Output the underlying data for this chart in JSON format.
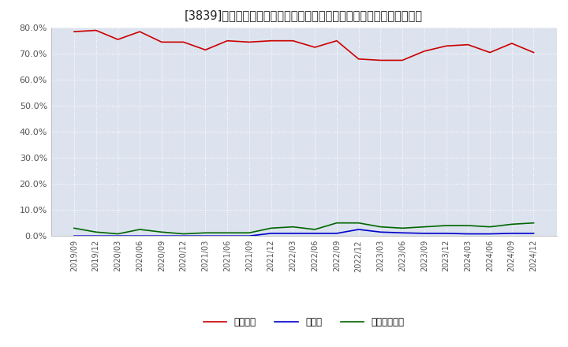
{
  "title": "[3839]　自己資本、のれん、繰延税金資産の総資産に対する比率の推移",
  "x_labels": [
    "2019/09",
    "2019/12",
    "2020/03",
    "2020/06",
    "2020/09",
    "2020/12",
    "2021/03",
    "2021/06",
    "2021/09",
    "2021/12",
    "2022/03",
    "2022/06",
    "2022/09",
    "2022/12",
    "2023/03",
    "2023/06",
    "2023/09",
    "2023/12",
    "2024/03",
    "2024/06",
    "2024/09",
    "2024/12"
  ],
  "jikoshihon": [
    78.5,
    79.0,
    75.5,
    78.5,
    74.5,
    74.5,
    71.5,
    75.0,
    74.5,
    75.0,
    75.0,
    72.5,
    75.0,
    68.0,
    67.5,
    67.5,
    71.0,
    73.0,
    73.5,
    70.5,
    74.0,
    70.5
  ],
  "noren": [
    0.0,
    0.0,
    0.0,
    0.0,
    0.0,
    0.0,
    0.0,
    0.0,
    0.0,
    1.0,
    1.0,
    1.0,
    1.0,
    2.5,
    1.5,
    1.2,
    1.0,
    1.0,
    0.8,
    0.8,
    1.0,
    1.0
  ],
  "kuenzeizei": [
    3.0,
    1.5,
    0.8,
    2.5,
    1.5,
    0.8,
    1.2,
    1.2,
    1.2,
    3.0,
    3.5,
    2.5,
    5.0,
    5.0,
    3.5,
    3.0,
    3.5,
    4.0,
    4.0,
    3.5,
    4.5,
    5.0
  ],
  "jikoshihon_color": "#cc0000",
  "noren_color": "#0000cc",
  "kuenzeizei_color": "#006600",
  "ylim": [
    0.0,
    80.0
  ],
  "yticks": [
    0.0,
    10.0,
    20.0,
    30.0,
    40.0,
    50.0,
    60.0,
    70.0,
    80.0
  ],
  "legend_labels": [
    "自己資本",
    "のれん",
    "繰延税金資産"
  ],
  "bg_color": "#ffffff",
  "plot_bg_color": "#dce3ee",
  "grid_color": "#ffffff",
  "tick_color": "#555555",
  "title_fontsize": 10.5,
  "linewidth": 1.2
}
